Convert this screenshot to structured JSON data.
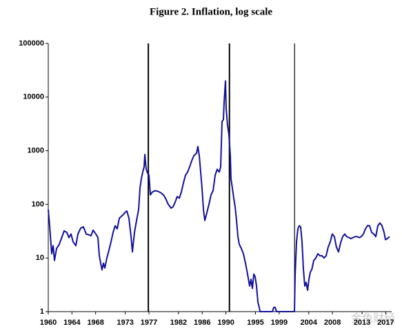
{
  "chart_data": {
    "type": "line",
    "title": "Figure 2. Inflation, log scale",
    "x": [
      1960.0,
      1960.23,
      1960.58,
      1960.82,
      1961.05,
      1961.4,
      1961.86,
      1962.33,
      1962.68,
      1963.14,
      1963.49,
      1963.84,
      1964.19,
      1964.66,
      1965.01,
      1965.47,
      1965.94,
      1966.41,
      1966.87,
      1967.22,
      1967.57,
      1968.04,
      1968.39,
      1968.62,
      1968.85,
      1969.08,
      1969.32,
      1969.55,
      1969.9,
      1970.25,
      1970.6,
      1970.95,
      1971.3,
      1971.65,
      1972.0,
      1972.35,
      1972.69,
      1973.04,
      1973.28,
      1973.63,
      1973.98,
      1974.21,
      1974.56,
      1974.91,
      1975.26,
      1975.49,
      1975.72,
      1975.96,
      1976.19,
      1976.31,
      1976.54,
      1976.78,
      1977.01,
      1977.24,
      1977.59,
      1978.05,
      1978.52,
      1978.99,
      1979.46,
      1979.8,
      1980.27,
      1980.74,
      1981.08,
      1981.43,
      1981.78,
      1982.13,
      1982.48,
      1982.83,
      1983.18,
      1983.53,
      1983.88,
      1984.23,
      1984.58,
      1985.04,
      1985.27,
      1985.51,
      1985.74,
      1985.97,
      1986.21,
      1986.44,
      1986.79,
      1987.14,
      1987.49,
      1987.84,
      1988.19,
      1988.53,
      1988.88,
      1989.12,
      1989.35,
      1989.58,
      1989.7,
      1989.93,
      1990.05,
      1990.28,
      1990.51,
      1990.75,
      1990.86,
      1991.1,
      1991.33,
      1991.56,
      1991.8,
      1992.03,
      1992.26,
      1992.61,
      1992.96,
      1993.31,
      1993.66,
      1994.01,
      1994.24,
      1994.48,
      1994.71,
      1994.94,
      1995.17,
      1995.41,
      1995.64,
      1995.76,
      1997.85,
      1998.09,
      1998.32,
      1998.56,
      2001.58,
      2001.7,
      2001.93,
      2002.16,
      2002.4,
      2002.63,
      2002.86,
      2003.1,
      2003.33,
      2003.56,
      2003.8,
      2004.03,
      2004.27,
      2004.5,
      2004.84,
      2005.19,
      2005.54,
      2005.89,
      2006.24,
      2006.58,
      2006.93,
      2007.28,
      2007.63,
      2007.97,
      2008.32,
      2008.67,
      2009.02,
      2009.37,
      2009.73,
      2010.07,
      2010.42,
      2010.78,
      2011.13,
      2011.48,
      2011.83,
      2012.17,
      2012.53,
      2012.87,
      2013.23,
      2013.57,
      2013.92,
      2014.27,
      2014.62,
      2014.98,
      2015.32,
      2015.67,
      2016.02,
      2016.37,
      2016.72,
      2016.95,
      2017.3,
      2017.65
    ],
    "series": [
      {
        "color": "#10109a",
        "values": [
          80,
          40,
          12,
          17,
          9,
          15,
          18,
          25,
          32,
          30,
          24,
          28,
          20,
          17,
          28,
          36,
          38,
          28,
          27,
          26,
          33,
          28,
          24,
          11,
          8,
          6,
          8,
          6.5,
          10,
          14,
          20,
          30,
          40,
          35,
          55,
          60,
          65,
          72,
          75,
          55,
          25,
          13,
          30,
          50,
          80,
          200,
          300,
          400,
          500,
          850,
          450,
          380,
          350,
          150,
          170,
          180,
          175,
          165,
          150,
          130,
          100,
          85,
          90,
          110,
          140,
          130,
          170,
          250,
          350,
          400,
          500,
          650,
          800,
          900,
          1200,
          800,
          400,
          200,
          80,
          50,
          70,
          100,
          150,
          180,
          350,
          450,
          400,
          500,
          3500,
          3800,
          8000,
          20000,
          6000,
          3000,
          2000,
          800,
          300,
          200,
          130,
          90,
          50,
          25,
          18,
          15,
          12,
          8,
          5,
          3,
          4,
          2.7,
          5,
          4.5,
          3,
          1.5,
          1.2,
          1,
          1,
          1.2,
          1.2,
          1,
          1,
          5,
          20,
          35,
          40,
          38,
          20,
          6,
          3,
          3.5,
          2.5,
          4,
          5.5,
          6,
          9,
          10,
          12,
          11,
          11,
          10,
          11,
          16,
          20,
          28,
          25,
          16,
          13,
          19,
          25,
          28,
          25,
          24,
          23,
          24,
          25,
          25,
          24,
          25,
          28,
          35,
          40,
          40,
          30,
          28,
          25,
          40,
          45,
          40,
          30,
          22,
          23,
          25
        ]
      }
    ],
    "xlim": [
      1960,
      2018
    ],
    "xticks": [
      1960,
      1964,
      1968,
      1973,
      1977,
      1982,
      1986,
      1990,
      1995,
      1999,
      2004,
      2008,
      2013,
      2017
    ],
    "ylim": [
      1,
      100000
    ],
    "yticks": [
      1,
      10,
      100,
      1000,
      10000,
      100000
    ],
    "log_y": true,
    "event_lines": [
      1976.9,
      1990.6,
      2001.6
    ],
    "watermark": "金色财经"
  }
}
